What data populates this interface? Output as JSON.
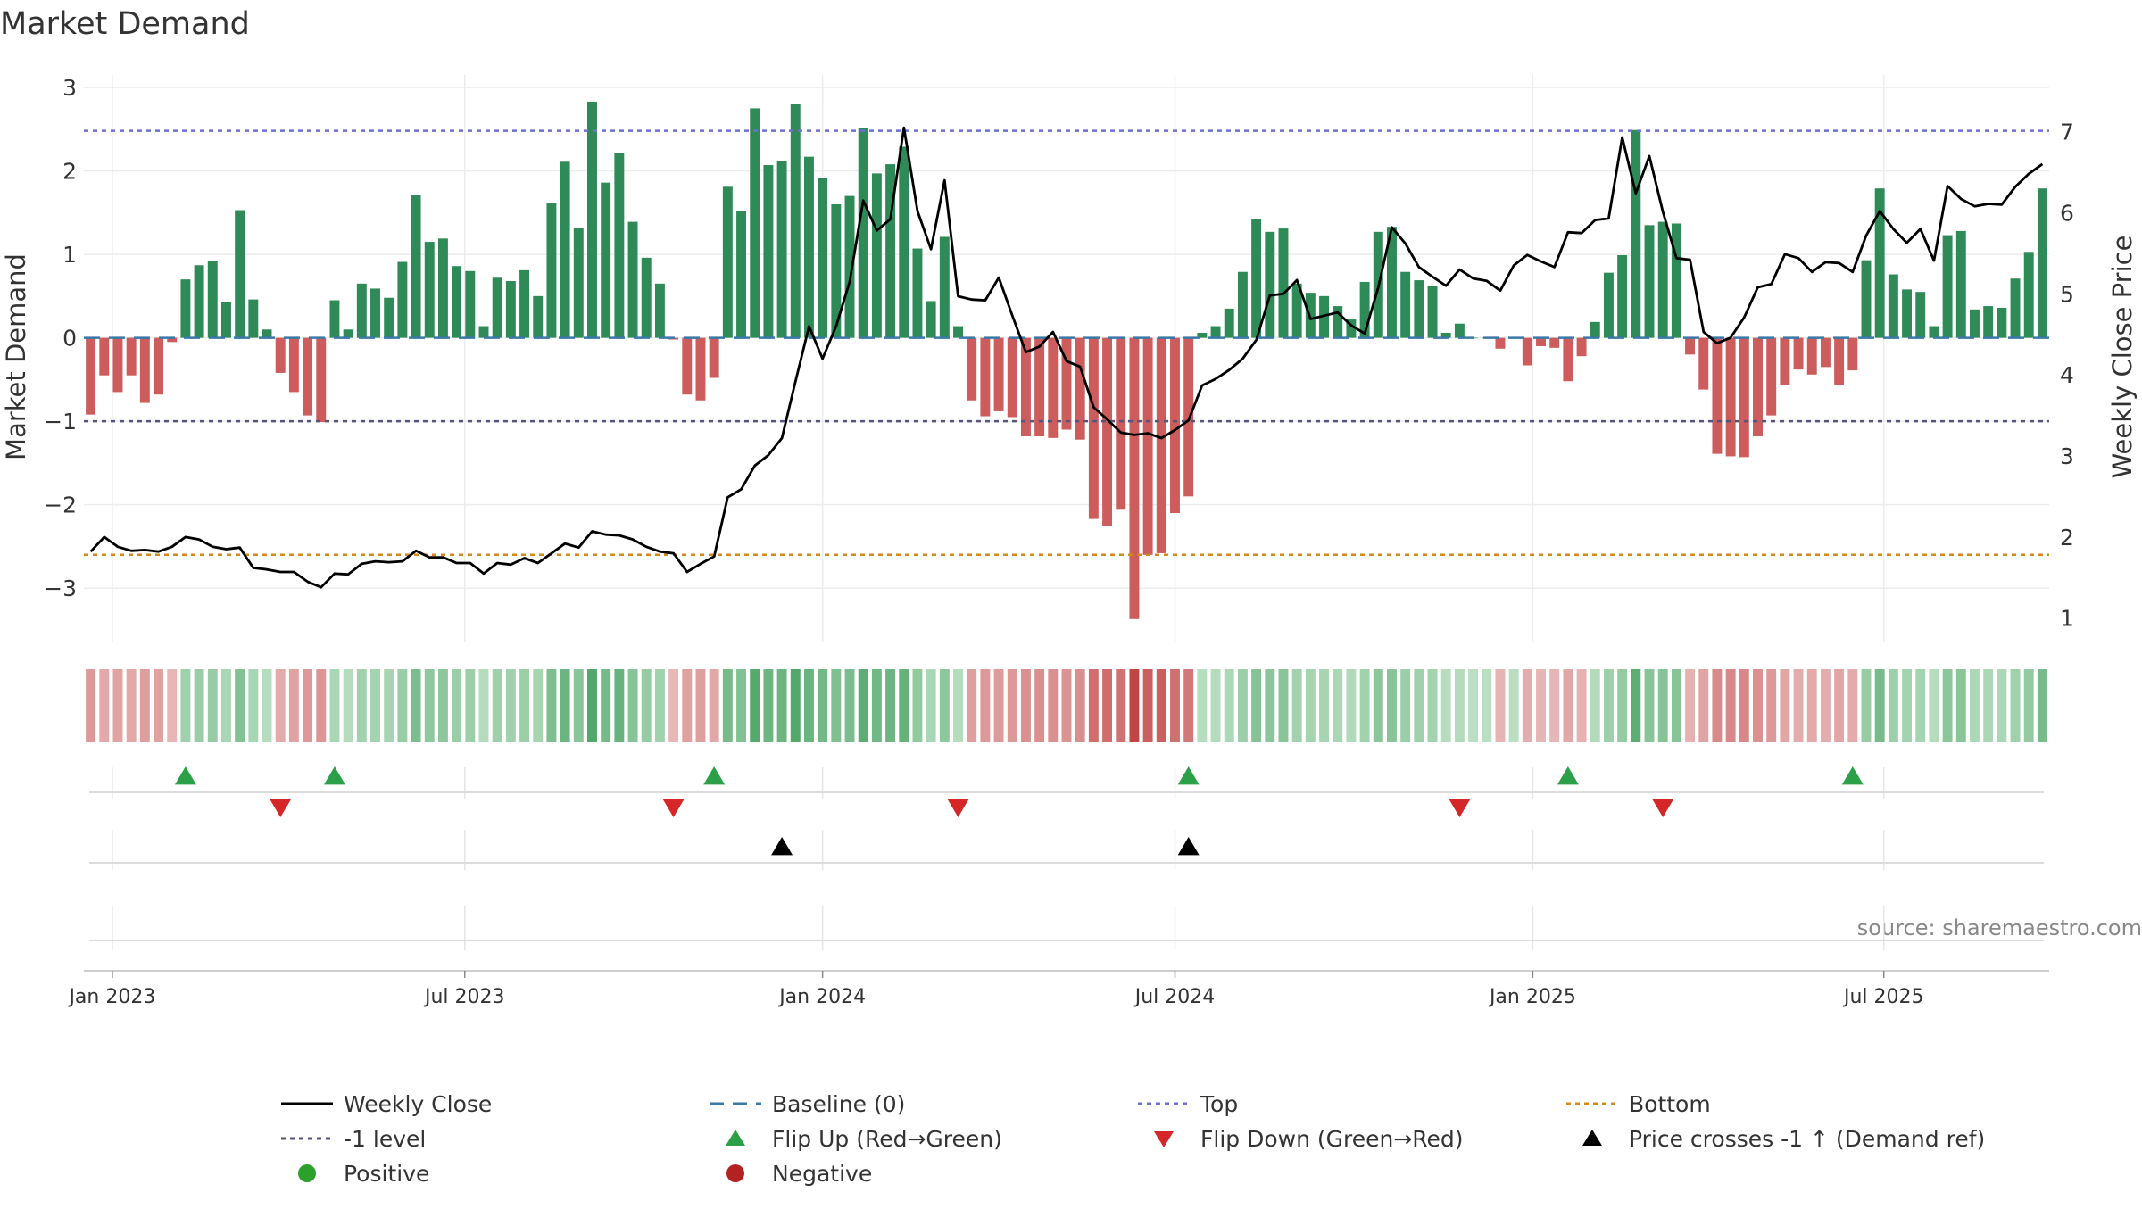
{
  "chart_data": {
    "type": "bar",
    "title": "Market Demand",
    "source": "source: sharemaestro.com",
    "ylabel_left": "Market Demand",
    "ylabel_right": "Weekly Close Price",
    "ylim_left": [
      -3.65,
      3.15
    ],
    "ylim_right": [
      0.7,
      7.7
    ],
    "yticks_left": [
      {
        "value": 3,
        "label": "3"
      },
      {
        "value": 2,
        "label": "2"
      },
      {
        "value": 1,
        "label": "1"
      },
      {
        "value": 0,
        "label": "0"
      },
      {
        "value": -1,
        "label": "−1"
      },
      {
        "value": -2,
        "label": "−2"
      },
      {
        "value": -3,
        "label": "−3"
      }
    ],
    "yticks_right": [
      {
        "value": 7,
        "label": "7"
      },
      {
        "value": 6,
        "label": "6"
      },
      {
        "value": 5,
        "label": "5"
      },
      {
        "value": 4,
        "label": "4"
      },
      {
        "value": 3,
        "label": "3"
      },
      {
        "value": 2,
        "label": "2"
      },
      {
        "value": 1,
        "label": "1"
      }
    ],
    "xticks": [
      {
        "index": 1.6,
        "label": "Jan 2023"
      },
      {
        "index": 27.6,
        "label": "Jul 2023"
      },
      {
        "index": 54,
        "label": "Jan 2024"
      },
      {
        "index": 80,
        "label": "Jul 2024"
      },
      {
        "index": 106.4,
        "label": "Jan 2025"
      },
      {
        "index": 132.3,
        "label": "Jul 2025"
      }
    ],
    "levels": {
      "top": 2.48,
      "bottom": -2.6,
      "minus_one": -1,
      "baseline": 0
    },
    "demand": [
      -0.92,
      -0.45,
      -0.65,
      -0.45,
      -0.78,
      -0.68,
      -0.05,
      0.7,
      0.87,
      0.92,
      0.43,
      1.53,
      0.46,
      0.1,
      -0.42,
      -0.65,
      -0.93,
      -1.01,
      0.45,
      0.1,
      0.65,
      0.59,
      0.48,
      0.91,
      1.71,
      1.15,
      1.19,
      0.86,
      0.8,
      0.14,
      0.72,
      0.68,
      0.81,
      0.5,
      1.61,
      2.11,
      1.32,
      2.83,
      1.86,
      2.21,
      1.39,
      0.96,
      0.65,
      -0.02,
      -0.68,
      -0.75,
      -0.48,
      1.81,
      1.52,
      2.75,
      2.07,
      2.12,
      2.8,
      2.17,
      1.91,
      1.6,
      1.7,
      2.51,
      1.97,
      2.08,
      2.29,
      1.07,
      0.44,
      1.21,
      0.14,
      -0.75,
      -0.94,
      -0.88,
      -0.95,
      -1.18,
      -1.18,
      -1.2,
      -1.1,
      -1.22,
      -2.17,
      -2.25,
      -2.06,
      -3.37,
      -2.6,
      -2.58,
      -2.1,
      -1.9,
      0.06,
      0.14,
      0.35,
      0.79,
      1.42,
      1.27,
      1.31,
      0.65,
      0.54,
      0.5,
      0.38,
      0.22,
      0.67,
      1.27,
      1.33,
      0.79,
      0.69,
      0.62,
      0.06,
      0.17,
      0,
      0,
      -0.13,
      0,
      -0.33,
      -0.1,
      -0.12,
      -0.52,
      -0.22,
      0.19,
      0.78,
      0.99,
      2.49,
      1.35,
      1.39,
      1.37,
      -0.2,
      -0.62,
      -1.39,
      -1.42,
      -1.43,
      -1.18,
      -0.93,
      -0.56,
      -0.38,
      -0.44,
      -0.35,
      -0.57,
      -0.39,
      0.93,
      1.79,
      0.76,
      0.58,
      0.55,
      0.14,
      1.23,
      1.28,
      0.34,
      0.38,
      0.36,
      0.71,
      1.03,
      1.79
    ],
    "close": [
      1.82,
      2.0,
      1.88,
      1.83,
      1.84,
      1.82,
      1.88,
      2.0,
      1.97,
      1.88,
      1.85,
      1.87,
      1.62,
      1.6,
      1.57,
      1.57,
      1.45,
      1.38,
      1.55,
      1.54,
      1.67,
      1.7,
      1.69,
      1.7,
      1.83,
      1.75,
      1.75,
      1.68,
      1.68,
      1.55,
      1.68,
      1.66,
      1.74,
      1.68,
      1.8,
      1.92,
      1.87,
      2.07,
      2.03,
      2.02,
      1.97,
      1.88,
      1.82,
      1.8,
      1.57,
      1.67,
      1.76,
      2.49,
      2.59,
      2.88,
      3.01,
      3.22,
      3.92,
      4.6,
      4.2,
      4.6,
      5.15,
      6.15,
      5.78,
      5.92,
      7.05,
      6.02,
      5.55,
      6.4,
      4.97,
      4.93,
      4.92,
      5.2,
      4.73,
      4.28,
      4.35,
      4.53,
      4.17,
      4.1,
      3.6,
      3.45,
      3.29,
      3.26,
      3.28,
      3.22,
      3.32,
      3.44,
      3.87,
      3.95,
      4.06,
      4.2,
      4.43,
      4.98,
      5.0,
      5.17,
      4.69,
      4.73,
      4.77,
      4.61,
      4.51,
      5.08,
      5.82,
      5.62,
      5.33,
      5.21,
      5.1,
      5.3,
      5.19,
      5.16,
      5.04,
      5.35,
      5.48,
      5.4,
      5.33,
      5.76,
      5.75,
      5.91,
      5.93,
      6.93,
      6.24,
      6.7,
      6.01,
      5.44,
      5.42,
      4.53,
      4.39,
      4.46,
      4.71,
      5.08,
      5.12,
      5.49,
      5.44,
      5.27,
      5.39,
      5.38,
      5.27,
      5.72,
      6.02,
      5.8,
      5.63,
      5.8,
      5.41,
      6.33,
      6.17,
      6.08,
      6.11,
      6.1,
      6.32,
      6.48,
      6.6
    ],
    "flip_up": [
      7,
      18,
      46,
      81,
      109,
      130
    ],
    "flip_down": [
      14,
      43,
      64,
      101,
      116
    ],
    "price_cross": [
      51,
      81
    ],
    "legend": [
      {
        "label": "Weekly Close",
        "kind": "line",
        "color": "#000000"
      },
      {
        "label": "Baseline (0)",
        "kind": "dashed",
        "color": "#3a78a8"
      },
      {
        "label": "Top",
        "kind": "dotted",
        "color": "#6e6ed6"
      },
      {
        "label": "Bottom",
        "kind": "dotted",
        "color": "#d48a1a"
      },
      {
        "label": "-1 level",
        "kind": "dotted",
        "color": "#555577"
      },
      {
        "label": "Flip Up (Red→Green)",
        "kind": "tri-up",
        "color": "#2ca048"
      },
      {
        "label": "Flip Down (Green→Red)",
        "kind": "tri-down",
        "color": "#d62728"
      },
      {
        "label": "Price crosses -1 ↑ (Demand ref)",
        "kind": "tri-up",
        "color": "#000000"
      },
      {
        "label": "Positive",
        "kind": "dot",
        "color": "#2ca02c"
      },
      {
        "label": "Negative",
        "kind": "dot",
        "color": "#b22222"
      }
    ],
    "colors": {
      "positive": "#2e8b57",
      "negative": "#cd5c5c",
      "price": "#000000",
      "top": "#6e6ed6",
      "bottom": "#d48a1a",
      "minus_one": "#555577",
      "baseline": "#3a78a8",
      "flip_up": "#2ca048",
      "flip_down": "#d62728"
    }
  }
}
